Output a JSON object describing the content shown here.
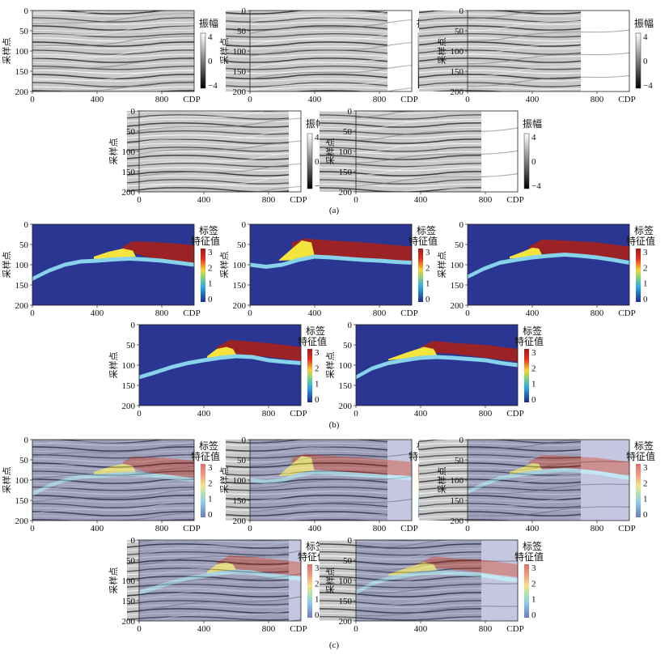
{
  "text": {
    "ylabel": "采样点",
    "xlabel": "CDP",
    "xticks": [
      "0",
      "400",
      "800"
    ],
    "yticks": [
      "0",
      "50",
      "100",
      "150",
      "200"
    ],
    "amp_title": "振幅",
    "amp_ticks": [
      "4",
      "0",
      "−4"
    ],
    "label_title_1": "标签",
    "label_title_2": "特征值",
    "label_ticks": [
      "3",
      "2",
      "1",
      "0"
    ]
  },
  "captions": {
    "a": "(a)",
    "b": "(b)",
    "c": "(c)"
  },
  "colors": {
    "class0": "#2b3592",
    "class1": "#86d3ea",
    "class2": "#f4e43d",
    "class3": "#9c2325",
    "seis_light": "#dcdcdc",
    "seis_dark": "#3a3a3a"
  },
  "chart_data": [
    {
      "type": "heatmap",
      "group": "(a)",
      "description_source": "seismic amplitude sections, 5 panels",
      "x_axis": {
        "label": "CDP",
        "ticks": [
          0,
          400,
          800
        ],
        "range": [
          0,
          1000
        ]
      },
      "y_axis": {
        "label": "采样点",
        "ticks": [
          0,
          50,
          100,
          150,
          200
        ],
        "range": [
          0,
          200
        ],
        "inverted": true
      },
      "colorbar": {
        "title": "振幅",
        "ticks": [
          4,
          0,
          -4
        ],
        "range": [
          -4,
          4
        ],
        "colormap": "gray"
      },
      "panels": 5
    },
    {
      "type": "heatmap",
      "group": "(b)",
      "x_axis": {
        "label": "CDP",
        "ticks": [
          0,
          400,
          800
        ],
        "range": [
          0,
          1000
        ]
      },
      "y_axis": {
        "label": "采样点",
        "ticks": [
          0,
          50,
          100,
          150,
          200
        ],
        "range": [
          0,
          200
        ],
        "inverted": true
      },
      "colorbar": {
        "title": "标签 特征值",
        "ticks": [
          3,
          2,
          1,
          0
        ],
        "range": [
          0,
          3
        ],
        "colormap": "jet"
      },
      "panels": [
        {
          "id": "b1",
          "cyan_boundary": [
            [
              0,
              135
            ],
            [
              100,
              115
            ],
            [
              200,
              100
            ],
            [
              300,
              92
            ],
            [
              400,
              90
            ],
            [
              500,
              87
            ],
            [
              600,
              85
            ],
            [
              700,
              87
            ],
            [
              800,
              90
            ],
            [
              900,
              95
            ],
            [
              1000,
              100
            ]
          ],
          "red_top": [
            [
              560,
              55
            ],
            [
              620,
              42
            ],
            [
              800,
              45
            ],
            [
              900,
              48
            ],
            [
              1000,
              52
            ]
          ],
          "red_bottom": [
            [
              560,
              62
            ],
            [
              700,
              80
            ],
            [
              800,
              88
            ],
            [
              1000,
              98
            ]
          ],
          "yellow_top": [
            [
              380,
              80
            ],
            [
              470,
              68
            ],
            [
              560,
              60
            ],
            [
              620,
              65
            ]
          ],
          "yellow_bottom": [
            [
              380,
              90
            ],
            [
              500,
              86
            ],
            [
              640,
              80
            ]
          ]
        },
        {
          "id": "b2",
          "cyan_boundary": [
            [
              0,
              100
            ],
            [
              100,
              105
            ],
            [
              200,
              100
            ],
            [
              300,
              88
            ],
            [
              400,
              80
            ],
            [
              500,
              82
            ],
            [
              600,
              85
            ],
            [
              700,
              88
            ],
            [
              800,
              90
            ],
            [
              900,
              93
            ],
            [
              1000,
              95
            ]
          ],
          "red_top": [
            [
              260,
              45
            ],
            [
              340,
              35
            ],
            [
              500,
              40
            ],
            [
              700,
              45
            ],
            [
              1000,
              55
            ]
          ],
          "red_bottom": [
            [
              260,
              60
            ],
            [
              400,
              78
            ],
            [
              600,
              82
            ],
            [
              800,
              86
            ],
            [
              1000,
              92
            ]
          ],
          "yellow_top": [
            [
              180,
              88
            ],
            [
              260,
              60
            ],
            [
              320,
              40
            ],
            [
              380,
              45
            ]
          ],
          "yellow_bottom": [
            [
              180,
              90
            ],
            [
              300,
              88
            ],
            [
              400,
              80
            ]
          ]
        },
        {
          "id": "b3",
          "cyan_boundary": [
            [
              0,
              130
            ],
            [
              100,
              110
            ],
            [
              200,
              95
            ],
            [
              300,
              88
            ],
            [
              400,
              82
            ],
            [
              500,
              78
            ],
            [
              600,
              75
            ],
            [
              700,
              78
            ],
            [
              800,
              82
            ],
            [
              900,
              88
            ],
            [
              1000,
              95
            ]
          ],
          "red_top": [
            [
              380,
              55
            ],
            [
              460,
              38
            ],
            [
              600,
              40
            ],
            [
              800,
              45
            ],
            [
              1000,
              55
            ]
          ],
          "red_bottom": [
            [
              380,
              70
            ],
            [
              500,
              74
            ],
            [
              700,
              78
            ],
            [
              1000,
              88
            ]
          ],
          "yellow_top": [
            [
              260,
              80
            ],
            [
              340,
              68
            ],
            [
              400,
              58
            ],
            [
              440,
              60
            ]
          ],
          "yellow_bottom": [
            [
              260,
              85
            ],
            [
              380,
              80
            ],
            [
              460,
              75
            ]
          ]
        },
        {
          "id": "b4",
          "cyan_boundary": [
            [
              0,
              130
            ],
            [
              100,
              118
            ],
            [
              200,
              105
            ],
            [
              300,
              95
            ],
            [
              400,
              88
            ],
            [
              500,
              82
            ],
            [
              600,
              78
            ],
            [
              700,
              80
            ],
            [
              800,
              88
            ],
            [
              900,
              92
            ],
            [
              1000,
              95
            ]
          ],
          "red_top": [
            [
              480,
              55
            ],
            [
              560,
              38
            ],
            [
              700,
              42
            ],
            [
              850,
              48
            ],
            [
              1000,
              55
            ]
          ],
          "red_bottom": [
            [
              480,
              70
            ],
            [
              600,
              72
            ],
            [
              800,
              80
            ],
            [
              1000,
              90
            ]
          ],
          "yellow_top": [
            [
              420,
              78
            ],
            [
              480,
              60
            ],
            [
              540,
              55
            ],
            [
              580,
              60
            ]
          ],
          "yellow_bottom": [
            [
              420,
              82
            ],
            [
              520,
              78
            ],
            [
              600,
              74
            ]
          ]
        },
        {
          "id": "b5",
          "cyan_boundary": [
            [
              0,
              130
            ],
            [
              100,
              108
            ],
            [
              200,
              95
            ],
            [
              300,
              88
            ],
            [
              400,
              82
            ],
            [
              500,
              80
            ],
            [
              600,
              82
            ],
            [
              700,
              85
            ],
            [
              800,
              88
            ],
            [
              900,
              95
            ],
            [
              1000,
              100
            ]
          ],
          "red_top": [
            [
              400,
              55
            ],
            [
              480,
              40
            ],
            [
              600,
              45
            ],
            [
              800,
              50
            ],
            [
              1000,
              60
            ]
          ],
          "red_bottom": [
            [
              400,
              68
            ],
            [
              600,
              72
            ],
            [
              800,
              82
            ],
            [
              1000,
              92
            ]
          ],
          "yellow_top": [
            [
              200,
              85
            ],
            [
              320,
              68
            ],
            [
              420,
              55
            ],
            [
              480,
              60
            ]
          ],
          "yellow_bottom": [
            [
              200,
              88
            ],
            [
              350,
              82
            ],
            [
              500,
              75
            ]
          ]
        }
      ]
    },
    {
      "type": "heatmap",
      "group": "(c)",
      "x_axis": {
        "label": "CDP",
        "ticks": [
          0,
          400,
          800
        ],
        "range": [
          0,
          1000
        ]
      },
      "y_axis": {
        "label": "采样点",
        "ticks": [
          0,
          50,
          100,
          150,
          200
        ],
        "range": [
          0,
          200
        ],
        "inverted": true
      },
      "colorbar": {
        "title": "标签 特征值",
        "ticks": [
          3,
          2,
          1,
          0
        ],
        "range": [
          0,
          3
        ],
        "colormap": "jet (translucent)"
      },
      "panels": 5,
      "overlay": "labels from (b) blended over seismic from (a)"
    }
  ]
}
